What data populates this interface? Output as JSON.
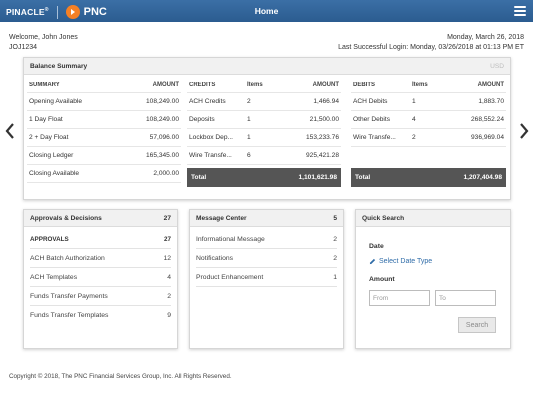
{
  "header": {
    "brand": "PINACLE",
    "brand_mark": "®",
    "logo_text": "PNC",
    "title": "Home"
  },
  "user": {
    "welcome": "Welcome, John Jones",
    "user_id": "JOJ1234",
    "date": "Monday, March 26, 2018",
    "last_login": "Last Successful Login: Monday, 03/26/2018 at 01:13 PM ET"
  },
  "balance_summary": {
    "title": "Balance Summary",
    "currency": "USD",
    "summary": {
      "headers": [
        "SUMMARY",
        "AMOUNT"
      ],
      "rows": [
        {
          "name": "Opening Available",
          "amount": "108,249.00"
        },
        {
          "name": "1 Day Float",
          "amount": "108,249.00"
        },
        {
          "name": "2 + Day Float",
          "amount": "57,096.00"
        },
        {
          "name": "Closing Ledger",
          "amount": "165,345.00"
        },
        {
          "name": "Closing Available",
          "amount": "2,000.00"
        }
      ]
    },
    "credits": {
      "headers": [
        "CREDITS",
        "Items",
        "AMOUNT"
      ],
      "rows": [
        {
          "name": "ACH Credits",
          "items": "2",
          "amount": "1,466.94"
        },
        {
          "name": "Deposits",
          "items": "1",
          "amount": "21,500.00"
        },
        {
          "name": "Lockbox Dep...",
          "items": "1",
          "amount": "153,233.76"
        },
        {
          "name": "Wire Transfe...",
          "items": "6",
          "amount": "925,421.28"
        }
      ],
      "total_label": "Total",
      "total": "1,101,621.98"
    },
    "debits": {
      "headers": [
        "DEBITS",
        "Items",
        "AMOUNT"
      ],
      "rows": [
        {
          "name": "ACH Debits",
          "items": "1",
          "amount": "1,883.70"
        },
        {
          "name": "Other Debits",
          "items": "4",
          "amount": "268,552.24"
        },
        {
          "name": "Wire Transfe...",
          "items": "2",
          "amount": "936,969.04"
        }
      ],
      "total_label": "Total",
      "total": "1,207,404.98"
    }
  },
  "approvals": {
    "title": "Approvals & Decisions",
    "count": "27",
    "rows": [
      {
        "label": "APPROVALS",
        "count": "27",
        "bold": true
      },
      {
        "label": "ACH Batch Authorization",
        "count": "12"
      },
      {
        "label": "ACH Templates",
        "count": "4"
      },
      {
        "label": "Funds Transfer Payments",
        "count": "2"
      },
      {
        "label": "Funds Transfer Templates",
        "count": "9"
      }
    ]
  },
  "messages": {
    "title": "Message Center",
    "count": "5",
    "rows": [
      {
        "label": "Informational Message",
        "count": "2"
      },
      {
        "label": "Notifications",
        "count": "2"
      },
      {
        "label": "Product Enhancement",
        "count": "1"
      }
    ]
  },
  "quick_search": {
    "title": "Quick Search",
    "date_label": "Date",
    "date_link": "Select Date Type",
    "amount_label": "Amount",
    "from_placeholder": "From",
    "to_placeholder": "To",
    "search_label": "Search"
  },
  "footer": {
    "copyright": "Copyright © 2018, The PNC Financial Services Group, Inc. All Rights Reserved."
  },
  "colors": {
    "header_bg": "#2f6399",
    "accent_orange": "#f58025",
    "link_blue": "#2f6ca8",
    "total_bar": "#555555"
  },
  "icons": [
    "menu-icon",
    "pnc-logo-icon",
    "chevron-left-icon",
    "chevron-right-icon",
    "pencil-icon"
  ]
}
